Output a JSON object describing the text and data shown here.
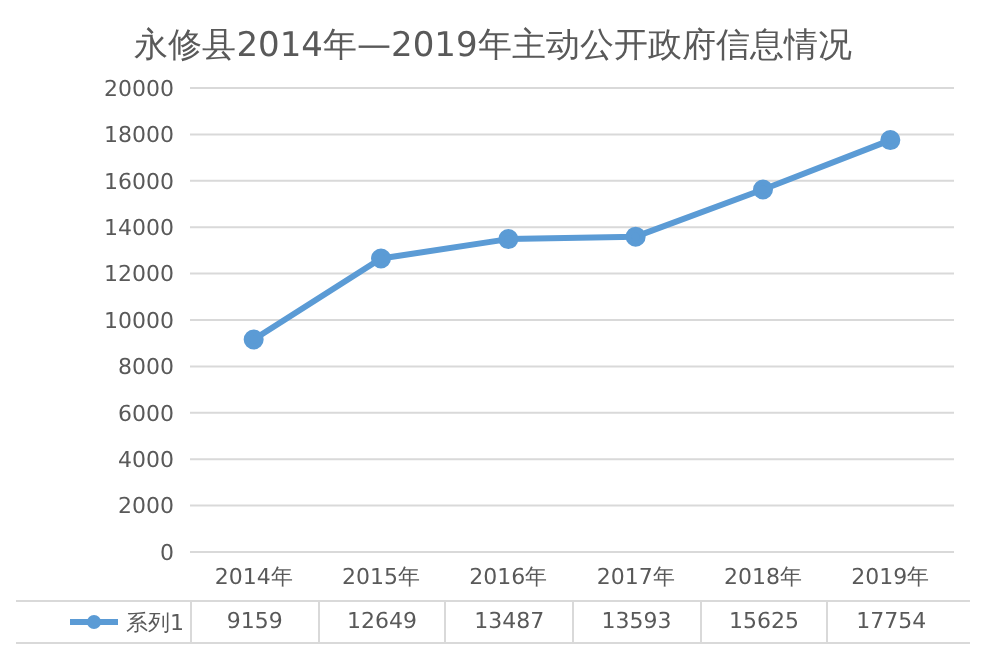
{
  "chart_data": {
    "type": "line",
    "title": "永修县2014年—2019年主动公开政府信息情况",
    "categories": [
      "2014年",
      "2015年",
      "2016年",
      "2017年",
      "2018年",
      "2019年"
    ],
    "series": [
      {
        "name": "系列1",
        "color": "#5b9bd5",
        "values": [
          9159,
          12649,
          13487,
          13593,
          15625,
          17754
        ]
      }
    ],
    "ylim": [
      0,
      20000
    ],
    "yticks": [
      0,
      2000,
      4000,
      6000,
      8000,
      10000,
      12000,
      14000,
      16000,
      18000,
      20000
    ],
    "grid": "y",
    "legend": "bottom left",
    "marker": "circle",
    "data_labels": true
  }
}
